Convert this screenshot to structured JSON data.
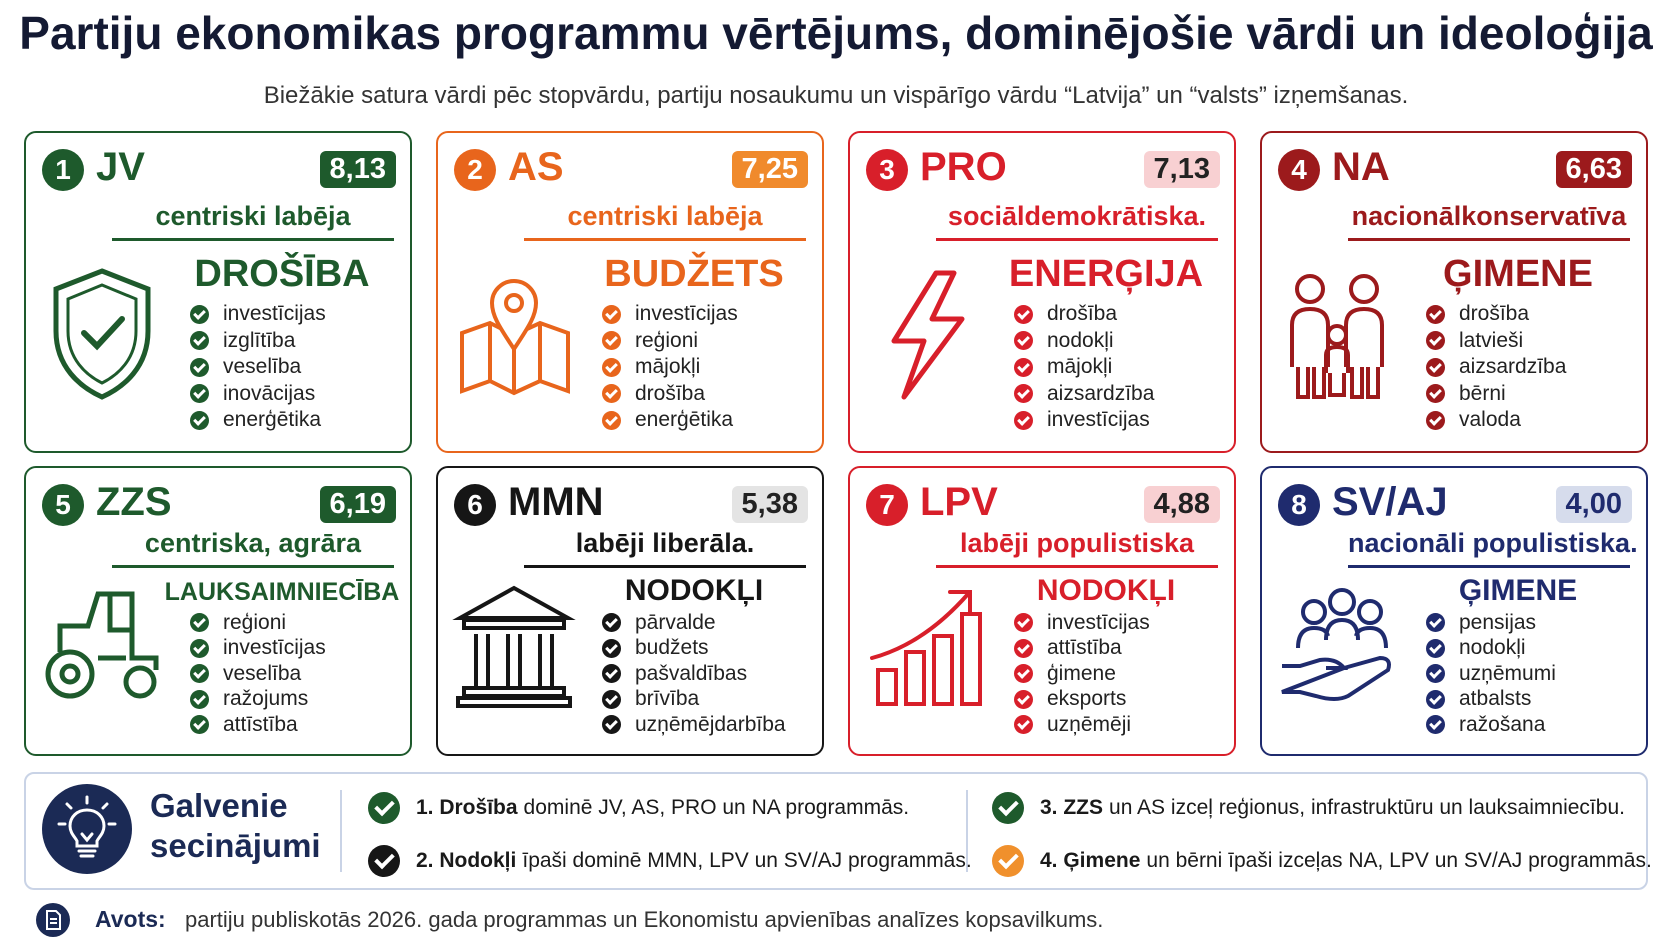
{
  "title": "Partiju ekonomikas programmu vērtējums, dominējošie vārdi un ideoloģija",
  "subtitle": "Biežākie satura vārdi pēc stopvārdu, partiju nosaukumu un vispārīgo vārdu “Latvija” un “valsts” izņemšanas.",
  "cards": [
    {
      "number": "1",
      "party": "JV",
      "score": "8,13",
      "ideology": "centriski labēja",
      "keyword": "DROŠĪBA",
      "items": [
        "investīcijas",
        "izglītība",
        "veselība",
        "inovācijas",
        "enerģētika"
      ],
      "color": "#1e5a2c",
      "badge_bg": "#1e5a2c",
      "badge_text": "#ffffff"
    },
    {
      "number": "2",
      "party": "AS",
      "score": "7,25",
      "ideology": "centriski labēja",
      "keyword": "BUDŽETS",
      "items": [
        "investīcijas",
        "reģioni",
        "mājokļi",
        "drošība",
        "enerģētika"
      ],
      "color": "#e8651c",
      "badge_bg": "#f08a2c",
      "badge_text": "#ffffff"
    },
    {
      "number": "3",
      "party": "PRO",
      "score": "7,13",
      "ideology": "sociāldemokrātiska.",
      "keyword": "ENERĢIJA",
      "items": [
        "drošība",
        "nodokļi",
        "mājokļi",
        "aizsardzība",
        "investīcijas"
      ],
      "color": "#d81f2a",
      "badge_bg": "#f8d0d2",
      "badge_text": "#222222"
    },
    {
      "number": "4",
      "party": "NA",
      "score": "6,63",
      "ideology": "nacionālkonservatīva",
      "keyword": "ĢIMENE",
      "items": [
        "drošība",
        "latvieši",
        "aizsardzība",
        "bērni",
        "valoda"
      ],
      "color": "#9c1a1c",
      "badge_bg": "#9c1a1c",
      "badge_text": "#ffffff"
    },
    {
      "number": "5",
      "party": "ZZS",
      "score": "6,19",
      "ideology": "centriska, agrāra",
      "keyword": "LAUKSAIMNIECĪBA",
      "items": [
        "reģioni",
        "investīcijas",
        "veselība",
        "ražojums",
        "attīstība"
      ],
      "color": "#1e5a2c",
      "badge_bg": "#1e5a2c",
      "badge_text": "#ffffff"
    },
    {
      "number": "6",
      "party": "MMN",
      "score": "5,38",
      "ideology": "labēji liberāla.",
      "keyword": "NODOKĻI",
      "items": [
        "pārvalde",
        "budžets",
        "pašvaldības",
        "brīvība",
        "uzņēmējdarbība"
      ],
      "color": "#161616",
      "badge_bg": "#e4e4e4",
      "badge_text": "#222222"
    },
    {
      "number": "7",
      "party": "LPV",
      "score": "4,88",
      "ideology": "labēji populistiska",
      "keyword": "NODOKĻI",
      "items": [
        "investīcijas",
        "attīstība",
        "ģimene",
        "eksports",
        "uzņēmēji"
      ],
      "color": "#d81f2a",
      "badge_bg": "#f8d0d2",
      "badge_text": "#222222"
    },
    {
      "number": "8",
      "party": "SV/AJ",
      "score": "4,00",
      "ideology": "nacionāli populistiska.",
      "keyword": "ĢIMENE",
      "items": [
        "pensijas",
        "nodokļi",
        "uzņēmumi",
        "atbalsts",
        "ražošana"
      ],
      "color": "#1f2b6e",
      "badge_bg": "#d6dcec",
      "badge_text": "#1f2b6e"
    }
  ],
  "conclusions": {
    "heading": "Galvenie secinājumi",
    "items": [
      {
        "bold": "1. Drošība",
        "text": "dominē JV, AS, PRO un NA programmās.",
        "check_color": "#1e5a2c"
      },
      {
        "bold": "2. Nodokļi",
        "text": "īpaši dominē MMN, LPV un SV/AJ programmās.",
        "check_color": "#161616"
      },
      {
        "bold": "3. ZZS",
        "text": "un AS izceļ reģionus, infrastruktūru un lauksaimniecību.",
        "check_color": "#1e5a2c"
      },
      {
        "bold": "4. Ģimene",
        "text": "un bērni īpaši izceļas NA, LPV un SV/AJ programmās.",
        "check_color": "#f0902c"
      }
    ]
  },
  "source": {
    "label": "Avots:",
    "text": "partiju publiskotās 2026. gada programmas un Ekonomistu apvienības analīzes kopsavilkums."
  }
}
